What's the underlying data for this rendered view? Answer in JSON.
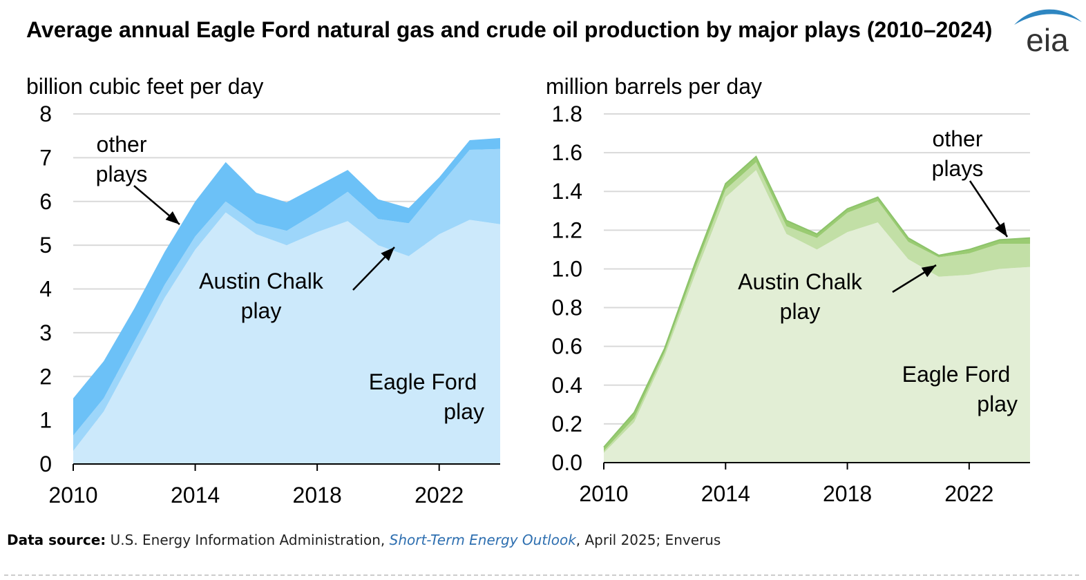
{
  "title": "Average annual Eagle Ford natural gas and crude oil production by major plays (2010–2024)",
  "logo_text": "eia",
  "source": {
    "label": "Data source:",
    "text_before": " U.S. Energy Information Administration, ",
    "link": "Short-Term Energy Outlook",
    "text_after": ", April 2025; Enverus"
  },
  "colors": {
    "gas_eagle_ford": "#cce9fb",
    "gas_austin_chalk": "#9dd6fa",
    "gas_other": "#6cc1f7",
    "oil_eagle_ford": "#e2eed5",
    "oil_austin_chalk": "#c2dfa6",
    "oil_other": "#9acb72",
    "grid": "#d9d9d9"
  },
  "chart_data": [
    {
      "type": "area",
      "stacked": true,
      "ylabel": "billion cubic feet per day",
      "xlabel": "",
      "ylim": [
        0,
        8
      ],
      "yticks": [
        0,
        1,
        2,
        3,
        4,
        5,
        6,
        7,
        8
      ],
      "ytick_labels": [
        "0",
        "1",
        "2",
        "3",
        "4",
        "5",
        "6",
        "7",
        "8"
      ],
      "xlim": [
        2010,
        2024
      ],
      "xticks": [
        2010,
        2014,
        2018,
        2022
      ],
      "xtick_labels": [
        "2010",
        "2014",
        "2018",
        "2022"
      ],
      "x": [
        2010,
        2011,
        2012,
        2013,
        2014,
        2015,
        2016,
        2017,
        2018,
        2019,
        2020,
        2021,
        2022,
        2023,
        2024
      ],
      "series": [
        {
          "name": "Eagle Ford play",
          "label_lines": [
            "Eagle Ford",
            "play"
          ],
          "values": [
            0.3,
            1.2,
            2.5,
            3.8,
            4.9,
            5.75,
            5.25,
            5.0,
            5.3,
            5.55,
            5.0,
            4.75,
            5.25,
            5.58,
            5.48
          ]
        },
        {
          "name": "Austin Chalk play",
          "label_lines": [
            "Austin Chalk",
            "play"
          ],
          "values": [
            0.35,
            0.3,
            0.3,
            0.3,
            0.3,
            0.25,
            0.25,
            0.33,
            0.45,
            0.67,
            0.6,
            0.75,
            1.1,
            1.6,
            1.72
          ]
        },
        {
          "name": "other plays",
          "label_lines": [
            "other",
            "plays"
          ],
          "values": [
            0.85,
            0.85,
            0.75,
            0.75,
            0.8,
            0.9,
            0.7,
            0.65,
            0.6,
            0.5,
            0.45,
            0.35,
            0.2,
            0.22,
            0.25
          ]
        }
      ]
    },
    {
      "type": "area",
      "stacked": true,
      "ylabel": "million barrels per day",
      "xlabel": "",
      "ylim": [
        0,
        1.8
      ],
      "yticks": [
        0,
        0.2,
        0.4,
        0.6,
        0.8,
        1.0,
        1.2,
        1.4,
        1.6,
        1.8
      ],
      "ytick_labels": [
        "0.0",
        "0.2",
        "0.4",
        "0.6",
        "0.8",
        "1.0",
        "1.2",
        "1.4",
        "1.6",
        "1.8"
      ],
      "xlim": [
        2010,
        2024
      ],
      "xticks": [
        2010,
        2014,
        2018,
        2022
      ],
      "xtick_labels": [
        "2010",
        "2014",
        "2018",
        "2022"
      ],
      "x": [
        2010,
        2011,
        2012,
        2013,
        2014,
        2015,
        2016,
        2017,
        2018,
        2019,
        2020,
        2021,
        2022,
        2023,
        2024
      ],
      "series": [
        {
          "name": "Eagle Ford play",
          "label_lines": [
            "Eagle Ford",
            "play"
          ],
          "values": [
            0.05,
            0.21,
            0.55,
            0.97,
            1.37,
            1.51,
            1.18,
            1.1,
            1.19,
            1.24,
            1.05,
            0.96,
            0.97,
            1.0,
            1.01
          ]
        },
        {
          "name": "Austin Chalk play",
          "label_lines": [
            "Austin Chalk",
            "play"
          ],
          "values": [
            0.01,
            0.02,
            0.02,
            0.03,
            0.04,
            0.04,
            0.04,
            0.06,
            0.1,
            0.11,
            0.09,
            0.1,
            0.11,
            0.13,
            0.12
          ]
        },
        {
          "name": "other plays",
          "label_lines": [
            "other",
            "plays"
          ],
          "values": [
            0.02,
            0.03,
            0.02,
            0.03,
            0.03,
            0.03,
            0.03,
            0.02,
            0.02,
            0.02,
            0.02,
            0.01,
            0.02,
            0.02,
            0.03
          ]
        }
      ]
    }
  ]
}
